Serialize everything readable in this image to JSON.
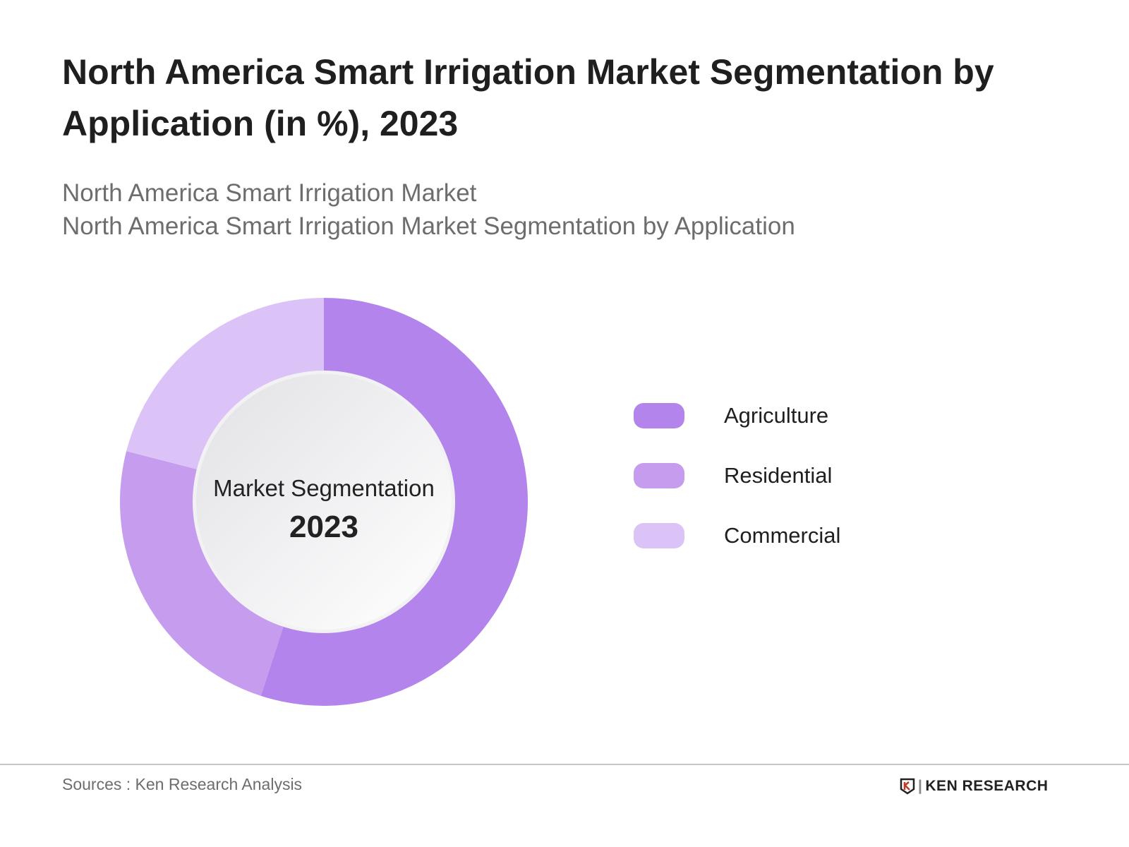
{
  "title": "North America Smart Irrigation Market Segmentation by Application (in %), 2023",
  "subtitle_lines": [
    "North America Smart Irrigation Market",
    "North America Smart Irrigation Market Segmentation by Application"
  ],
  "chart_data": {
    "type": "pie",
    "variant": "donut",
    "center_label": "Market Segmentation",
    "center_value": "2023",
    "categories": [
      "Agriculture",
      "Residential",
      "Commercial"
    ],
    "values": [
      55,
      24,
      21
    ],
    "colors": [
      "#b384ec",
      "#c69cee",
      "#dcc3f7"
    ],
    "legend_position": "right"
  },
  "footer": {
    "source": "Sources : Ken Research Analysis",
    "logo": "KEN RESEARCH"
  }
}
